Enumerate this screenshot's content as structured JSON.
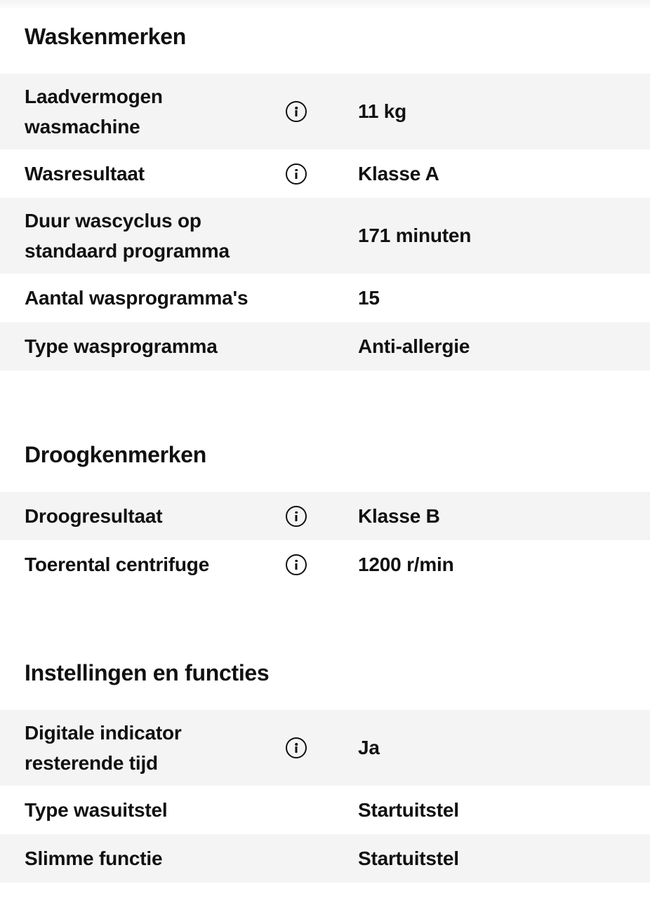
{
  "sections": [
    {
      "title": "Waskenmerken",
      "rows": [
        {
          "label": "Laadvermogen wasmachine",
          "value": "11 kg",
          "info": true
        },
        {
          "label": "Wasresultaat",
          "value": "Klasse A",
          "info": true
        },
        {
          "label": "Duur wascyclus op standaard programma",
          "value": "171 minuten",
          "info": false
        },
        {
          "label": "Aantal wasprogramma's",
          "value": "15",
          "info": false
        },
        {
          "label": "Type wasprogramma",
          "value": "Anti-allergie",
          "info": false
        }
      ]
    },
    {
      "title": "Droogkenmerken",
      "rows": [
        {
          "label": "Droogresultaat",
          "value": "Klasse B",
          "info": true
        },
        {
          "label": "Toerental centrifuge",
          "value": "1200 r/min",
          "info": true
        }
      ]
    },
    {
      "title": "Instellingen en functies",
      "rows": [
        {
          "label": "Digitale indicator resterende tijd",
          "value": "Ja",
          "info": true
        },
        {
          "label": "Type wasuitstel",
          "value": "Startuitstel",
          "info": false
        },
        {
          "label": "Slimme functie",
          "value": "Startuitstel",
          "info": false
        }
      ]
    }
  ]
}
